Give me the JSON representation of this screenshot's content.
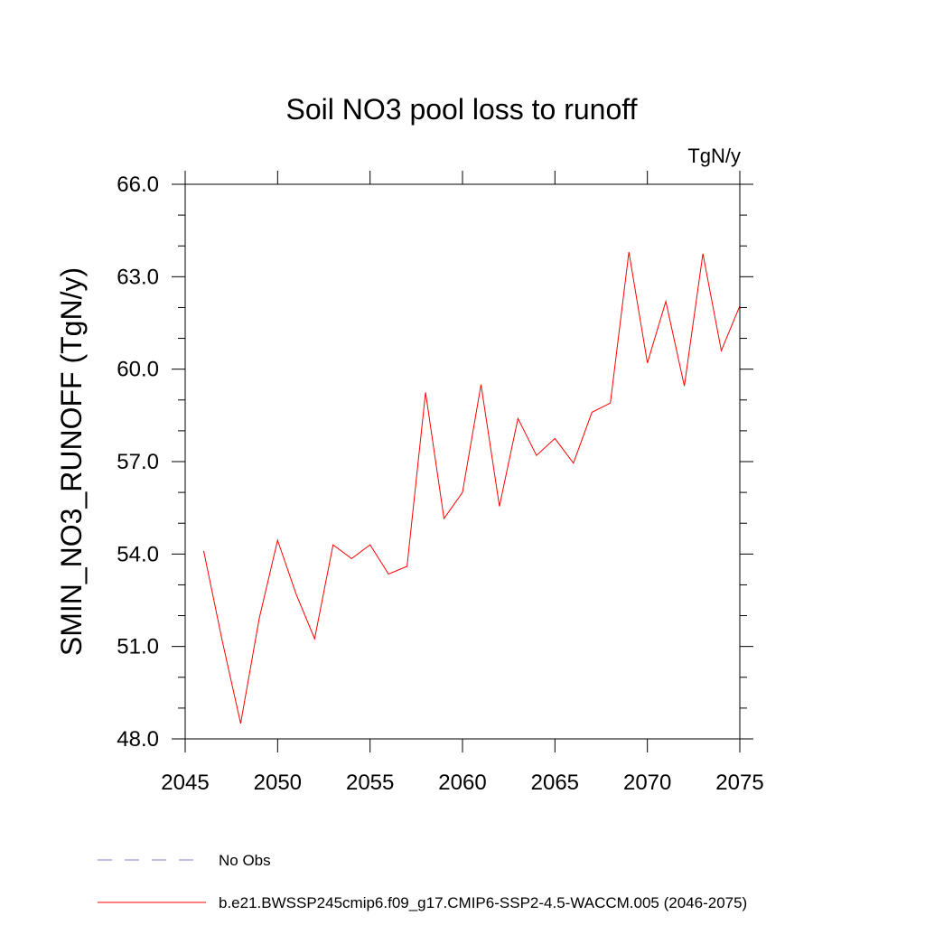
{
  "chart_data": {
    "type": "line",
    "title": "Soil NO3 pool loss to runoff",
    "units": "TgN/y",
    "ylabel": "SMIN_NO3_RUNOFF  (TgN/y)",
    "xlabel": "",
    "xlim": [
      2045,
      2075
    ],
    "ylim": [
      48.0,
      66.0
    ],
    "xticks": [
      2045,
      2050,
      2055,
      2060,
      2065,
      2070,
      2075
    ],
    "xtick_labels": [
      "2045",
      "2050",
      "2055",
      "2060",
      "2065",
      "2070",
      "2075"
    ],
    "yticks": [
      48.0,
      51.0,
      54.0,
      57.0,
      60.0,
      63.0,
      66.0
    ],
    "ytick_labels": [
      "48.0",
      "51.0",
      "54.0",
      "57.0",
      "60.0",
      "63.0",
      "66.0"
    ],
    "grid": false,
    "legend_position": "bottom",
    "series": [
      {
        "name": "b.e21.BWSSP245cmip6.f09_g17.CMIP6-SSP2-4.5-WACCM.005 (2046-2075)",
        "color": "#ff0000",
        "style": "solid",
        "x": [
          2046,
          2047,
          2048,
          2049,
          2050,
          2051,
          2052,
          2053,
          2054,
          2055,
          2056,
          2057,
          2058,
          2059,
          2060,
          2061,
          2062,
          2063,
          2064,
          2065,
          2066,
          2067,
          2068,
          2069,
          2070,
          2071,
          2072,
          2073,
          2074,
          2075
        ],
        "y": [
          54.1,
          51.2,
          48.5,
          51.9,
          54.45,
          52.7,
          51.25,
          54.3,
          53.85,
          54.3,
          53.35,
          53.6,
          59.25,
          55.15,
          56.0,
          59.5,
          55.55,
          58.4,
          57.2,
          57.75,
          56.95,
          58.6,
          58.9,
          63.8,
          60.2,
          62.2,
          59.45,
          63.75,
          60.6,
          62.05
        ]
      }
    ],
    "legend": [
      {
        "label": "No Obs",
        "color": "#8080c0",
        "style": "dashed"
      },
      {
        "label": "b.e21.BWSSP245cmip6.f09_g17.CMIP6-SSP2-4.5-WACCM.005 (2046-2075)",
        "color": "#ff0000",
        "style": "solid"
      }
    ]
  }
}
